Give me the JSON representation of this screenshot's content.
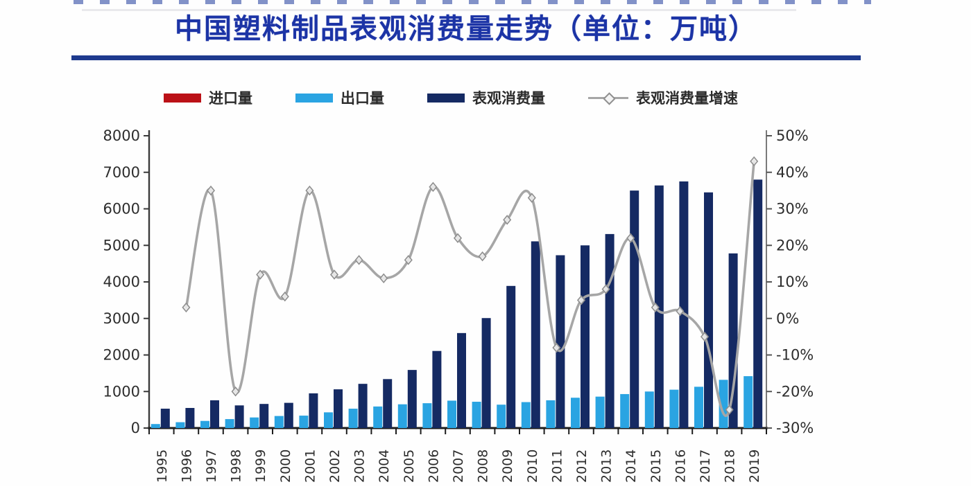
{
  "title": {
    "text": "中国塑料制品表观消费量走势（单位：万吨）"
  },
  "legend": [
    {
      "label": "进口量",
      "type": "bar",
      "color": "#bb1117"
    },
    {
      "label": "出口量",
      "type": "bar",
      "color": "#2aa4e2"
    },
    {
      "label": "表观消费量",
      "type": "bar",
      "color": "#152a63"
    },
    {
      "label": "表观消费量增速",
      "type": "line",
      "color": "#a6a6a6"
    }
  ],
  "chart_data": {
    "type": "bar",
    "subtype": "grouped bars + smoothed line on secondary axis",
    "title": "中国塑料制品表观消费量走势（单位：万吨）",
    "categories": [
      1995,
      1996,
      1997,
      1998,
      1999,
      2000,
      2001,
      2002,
      2003,
      2004,
      2005,
      2006,
      2007,
      2008,
      2009,
      2010,
      2011,
      2012,
      2013,
      2014,
      2015,
      2016,
      2017,
      2018,
      2019
    ],
    "series": [
      {
        "name": "进口量",
        "type": "bar",
        "axis": "left",
        "color": "#bb1117",
        "values": null,
        "note": "series appears in legend only; bars too small to be visible in the plot"
      },
      {
        "name": "出口量",
        "type": "bar",
        "axis": "left",
        "color": "#2aa4e2",
        "values": [
          110,
          160,
          195,
          245,
          290,
          330,
          340,
          430,
          530,
          590,
          650,
          680,
          750,
          720,
          640,
          710,
          760,
          830,
          860,
          930,
          1000,
          1050,
          1130,
          1320,
          1420
        ]
      },
      {
        "name": "表观消费量",
        "type": "bar",
        "axis": "left",
        "color": "#152a63",
        "values": [
          530,
          550,
          760,
          620,
          660,
          690,
          950,
          1060,
          1210,
          1340,
          1590,
          2110,
          2600,
          3010,
          3890,
          5110,
          4730,
          5000,
          5310,
          6500,
          6640,
          6750,
          6450,
          4780,
          6800
        ]
      },
      {
        "name": "表观消费量增速",
        "type": "line",
        "axis": "right",
        "unit": "%",
        "color": "#a6a6a6",
        "values": [
          null,
          3,
          35,
          -20,
          12,
          6,
          35,
          12,
          16,
          11,
          16,
          36,
          22,
          17,
          27,
          33,
          -8,
          5,
          8,
          22,
          3,
          2,
          -5,
          -25,
          43
        ]
      }
    ],
    "left_axis": {
      "min": 0,
      "max": 8000,
      "step": 1000,
      "ticks": [
        "8000",
        "7000",
        "6000",
        "5000",
        "4000",
        "3000",
        "2000",
        "1000",
        "0"
      ]
    },
    "right_axis": {
      "min": -30,
      "max": 50,
      "step": 10,
      "ticks": [
        "50%",
        "40%",
        "30%",
        "20%",
        "10%",
        "0%",
        "-10%",
        "-20%",
        "-30%"
      ]
    },
    "layout": {
      "legend_position": "top",
      "grid": false,
      "x_labels_rotated_deg": -90
    }
  }
}
